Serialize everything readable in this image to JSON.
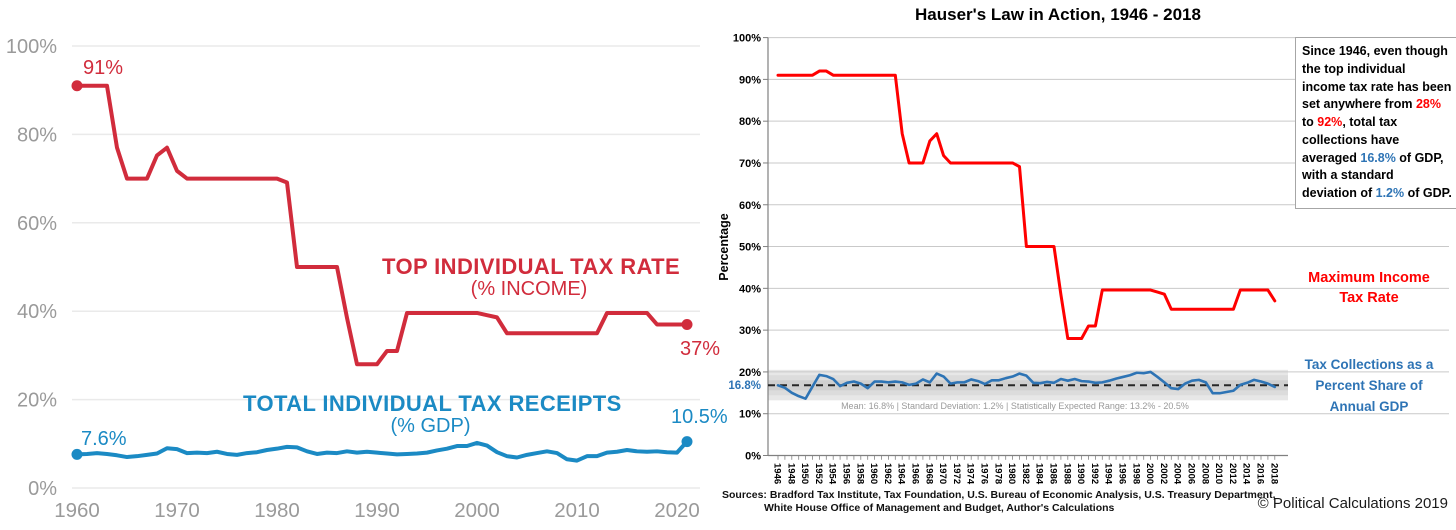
{
  "left_chart": {
    "annotations": {
      "red_start": "91%",
      "red_end": "37%",
      "blue_start": "7.6%",
      "blue_end": "10.5%"
    },
    "series_labels": {
      "red_title": "TOP INDIVIDUAL TAX RATE",
      "red_sub": "(% INCOME)",
      "blue_title": "TOTAL INDIVIDUAL TAX RECEIPTS",
      "blue_sub": "(% GDP)"
    },
    "colors": {
      "red": "#D12C3C",
      "blue": "#1B8AC4",
      "grid": "#EAEAEA",
      "tick_text": "#9A9A9A"
    }
  },
  "right_chart": {
    "title": "Hauser's Law in Action, 1946 - 2018",
    "mean_axis_label": "16.8%",
    "band_caption": "Mean: 16.8% | Standard Deviation: 1.2% | Statistically Expected Range: 13.2% - 20.5%",
    "legend": {
      "red_lines": [
        "Maximum Income",
        "Tax Rate"
      ],
      "blue_lines": [
        "Tax Collections as a",
        "Percent Share of",
        "Annual GDP"
      ]
    },
    "textbox": {
      "segments": [
        {
          "t": "Since 1946, even though the top individual income tax rate has been set anywhere from ",
          "c": "k"
        },
        {
          "t": "28%",
          "c": "r"
        },
        {
          "t": " to ",
          "c": "k"
        },
        {
          "t": "92%",
          "c": "r"
        },
        {
          "t": ", total tax collections have averaged ",
          "c": "k"
        },
        {
          "t": "16.8%",
          "c": "b"
        },
        {
          "t": " of GDP, with a standard deviation of ",
          "c": "k"
        },
        {
          "t": "1.2%",
          "c": "b"
        },
        {
          "t": " of GDP.",
          "c": "k"
        }
      ],
      "colors": {
        "k": "#000000",
        "r": "#FF0000",
        "b": "#2E74B5"
      }
    },
    "colors": {
      "red": "#FF0000",
      "blue": "#2E74B5",
      "grid": "#C9C9C9",
      "axis": "#808080",
      "band_outer": "#E7E7E7",
      "band_mid": "#DCDCDC",
      "band_inner": "#CFCFCF",
      "dash": "#262626"
    }
  },
  "footer": {
    "sources_line1": "Sources:  Bradford Tax Institute, Tax Foundation,  U.S. Bureau of Economic  Analysis,  U.S. Treasury Department,",
    "sources_line2": "White House Office of Management and Budget, Author's Calculations",
    "copyright": "© Political Calculations 2019"
  },
  "chart_data": [
    {
      "type": "line",
      "title": "",
      "years": {
        "start": 1960,
        "end": 2021
      },
      "ylim": [
        0,
        100
      ],
      "yticks": [
        0,
        20,
        40,
        60,
        80,
        100
      ],
      "xticks": [
        1960,
        1970,
        1980,
        1990,
        2000,
        2010,
        2020
      ],
      "grid": true,
      "series": [
        {
          "name": "Top Individual Tax Rate (% Income)",
          "color": "#D12C3C",
          "values": [
            91,
            91,
            91,
            91,
            77,
            70,
            70,
            70,
            75.25,
            77,
            71.75,
            70,
            70,
            70,
            70,
            70,
            70,
            70,
            70,
            70,
            70,
            69.125,
            50,
            50,
            50,
            50,
            50,
            38.5,
            28,
            28,
            28,
            31,
            31,
            39.6,
            39.6,
            39.6,
            39.6,
            39.6,
            39.6,
            39.6,
            39.6,
            39.1,
            38.6,
            35,
            35,
            35,
            35,
            35,
            35,
            35,
            35,
            35,
            35,
            39.6,
            39.6,
            39.6,
            39.6,
            39.6,
            37,
            37,
            37,
            37
          ]
        },
        {
          "name": "Total Individual Tax Receipts (% GDP)",
          "color": "#1B8AC4",
          "values": [
            7.6,
            7.7,
            7.9,
            7.7,
            7.4,
            7.0,
            7.2,
            7.5,
            7.8,
            9.0,
            8.8,
            7.9,
            8.0,
            7.9,
            8.2,
            7.7,
            7.5,
            7.9,
            8.1,
            8.6,
            8.9,
            9.3,
            9.2,
            8.3,
            7.7,
            8.0,
            7.9,
            8.3,
            8.0,
            8.2,
            8.0,
            7.8,
            7.6,
            7.7,
            7.8,
            8.0,
            8.5,
            8.9,
            9.5,
            9.5,
            10.2,
            9.6,
            8.1,
            7.2,
            6.9,
            7.5,
            7.9,
            8.3,
            7.9,
            6.5,
            6.2,
            7.2,
            7.2,
            8.0,
            8.2,
            8.6,
            8.3,
            8.2,
            8.3,
            8.1,
            8.0,
            10.5
          ]
        }
      ]
    },
    {
      "type": "line",
      "title": "Hauser's Law in Action, 1946 - 2018",
      "ylabel": "Percentage",
      "years": {
        "start": 1946,
        "end": 2018
      },
      "ylim": [
        0,
        100
      ],
      "yticks": [
        0,
        10,
        20,
        30,
        40,
        50,
        60,
        70,
        80,
        90,
        100
      ],
      "xtick_step": 2,
      "grid": true,
      "mean_band": {
        "mean": 16.8,
        "std": 1.2,
        "expected_range": [
          13.2,
          20.5
        ]
      },
      "series": [
        {
          "name": "Maximum Income Tax Rate",
          "color": "#FF0000",
          "values": [
            91,
            91,
            91,
            91,
            91,
            91,
            92,
            92,
            91,
            91,
            91,
            91,
            91,
            91,
            91,
            91,
            91,
            91,
            77,
            70,
            70,
            70,
            75.25,
            77,
            71.75,
            70,
            70,
            70,
            70,
            70,
            70,
            70,
            70,
            70,
            70,
            69.125,
            50,
            50,
            50,
            50,
            50,
            38.5,
            28,
            28,
            28,
            31,
            31,
            39.6,
            39.6,
            39.6,
            39.6,
            39.6,
            39.6,
            39.6,
            39.6,
            39.1,
            38.6,
            35,
            35,
            35,
            35,
            35,
            35,
            35,
            35,
            35,
            35,
            39.6,
            39.6,
            39.6,
            39.6,
            39.6,
            37
          ]
        },
        {
          "name": "Tax Collections as a Percent Share of Annual GDP",
          "color": "#2E74B5",
          "values": [
            16.8,
            16.2,
            15.0,
            14.2,
            13.6,
            16.5,
            19.3,
            19.0,
            18.3,
            16.6,
            17.4,
            17.7,
            17.2,
            16.1,
            17.7,
            17.7,
            17.5,
            17.7,
            17.5,
            16.9,
            17.2,
            18.2,
            17.5,
            19.6,
            18.9,
            17.2,
            17.5,
            17.5,
            18.2,
            17.8,
            17.1,
            18.0,
            18.0,
            18.5,
            18.9,
            19.6,
            19.1,
            17.4,
            17.3,
            17.6,
            17.4,
            18.3,
            17.9,
            18.3,
            17.8,
            17.7,
            17.4,
            17.5,
            17.9,
            18.4,
            18.8,
            19.2,
            19.8,
            19.7,
            20.0,
            18.8,
            17.5,
            16.1,
            15.9,
            17.2,
            17.9,
            18.1,
            17.5,
            14.9,
            14.9,
            15.2,
            15.5,
            16.9,
            17.4,
            18.1,
            17.7,
            17.2,
            16.4
          ]
        }
      ]
    }
  ]
}
